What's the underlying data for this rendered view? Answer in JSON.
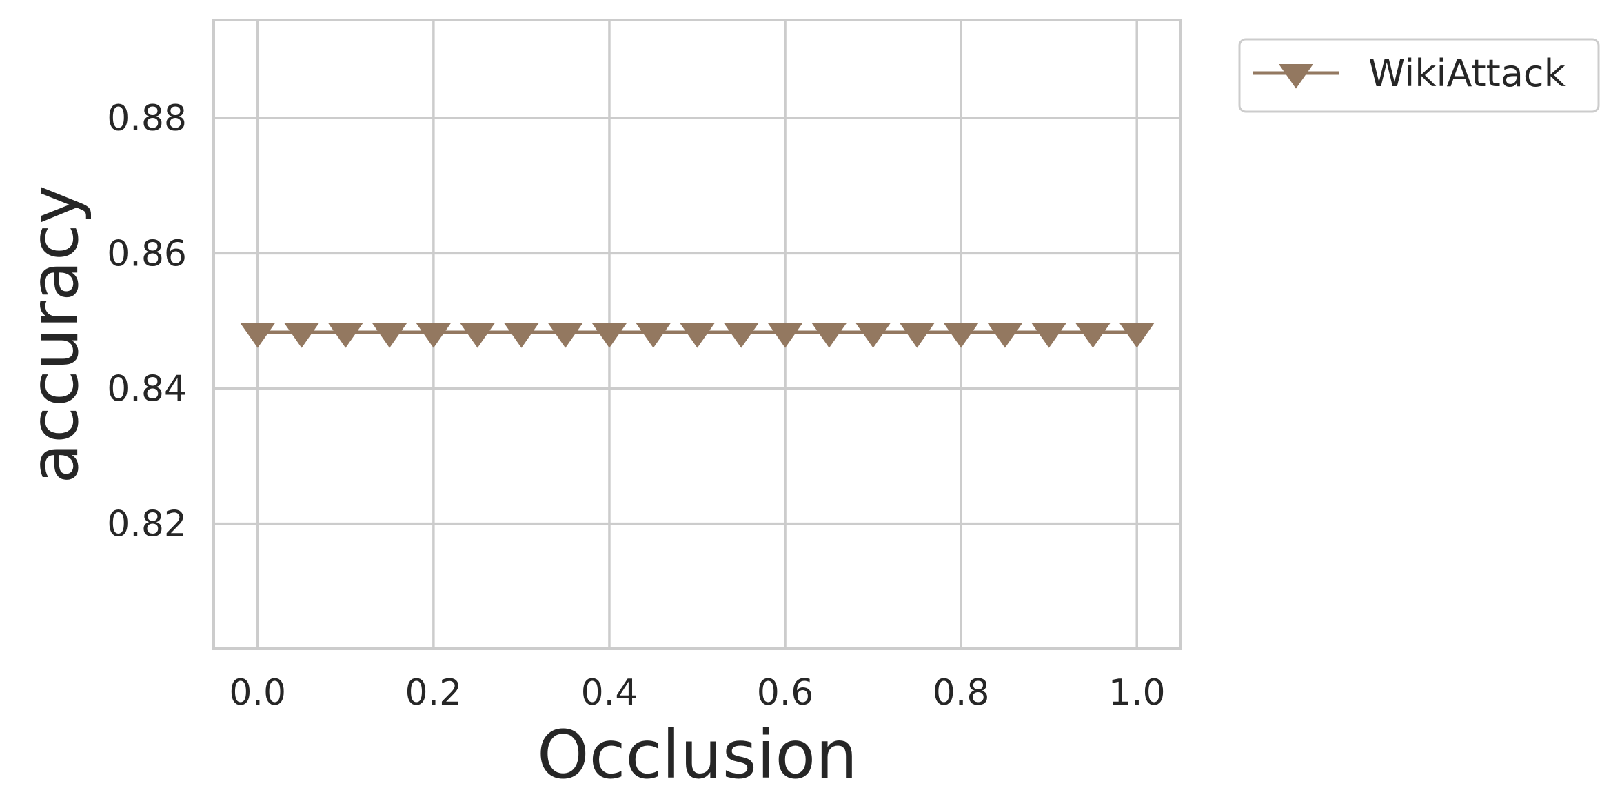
{
  "chart_data": {
    "type": "line",
    "xlabel": "Occlusion",
    "ylabel": "accuracy",
    "xlim": [
      -0.05,
      1.05
    ],
    "ylim": [
      0.8015,
      0.8945
    ],
    "xticks": [
      0.0,
      0.2,
      0.4,
      0.6,
      0.8,
      1.0
    ],
    "xtick_labels": [
      "0.0",
      "0.2",
      "0.4",
      "0.6",
      "0.8",
      "1.0"
    ],
    "yticks": [
      0.82,
      0.84,
      0.86,
      0.88
    ],
    "ytick_labels": [
      "0.82",
      "0.84",
      "0.86",
      "0.88"
    ],
    "grid": true,
    "legend_position": "outside-top-right",
    "series": [
      {
        "name": "WikiAttack",
        "color": "#937860",
        "marker": "triangle-down",
        "x": [
          0.0,
          0.05,
          0.1,
          0.15,
          0.2,
          0.25,
          0.3,
          0.35,
          0.4,
          0.45,
          0.5,
          0.55,
          0.6,
          0.65,
          0.7,
          0.75,
          0.8,
          0.85,
          0.9,
          0.95,
          1.0
        ],
        "y": [
          0.8483,
          0.8483,
          0.8483,
          0.8483,
          0.8483,
          0.8483,
          0.8483,
          0.8483,
          0.8483,
          0.8483,
          0.8483,
          0.8483,
          0.8483,
          0.8483,
          0.8483,
          0.8483,
          0.8483,
          0.8483,
          0.8483,
          0.8483,
          0.8483
        ]
      }
    ]
  },
  "colors": {
    "grid": "#cccccc",
    "spine": "#cccccc",
    "text": "#262626"
  }
}
